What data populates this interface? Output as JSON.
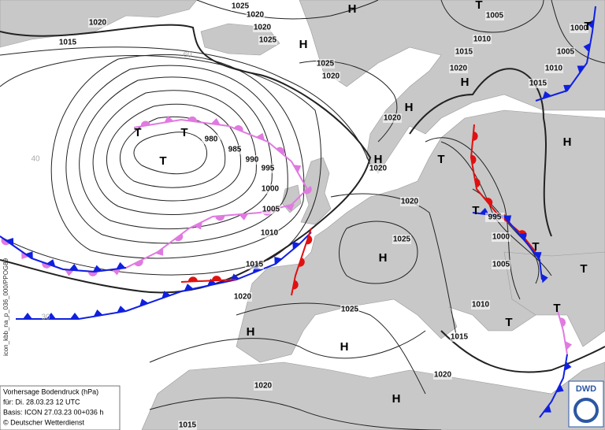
{
  "map": {
    "isobar_labels": [
      "1020",
      "1025",
      "1020",
      "1020",
      "1025",
      "1015",
      "1025",
      "1020",
      "1005",
      "1000",
      "1010",
      "1005",
      "1015",
      "1020",
      "1010",
      "1015",
      "1020",
      "1020",
      "1020",
      "980",
      "985",
      "990",
      "995",
      "1000",
      "1005",
      "1010",
      "1015",
      "1020",
      "1025",
      "995",
      "1000",
      "1005",
      "1010",
      "1025",
      "1015",
      "1020",
      "1020",
      "1015"
    ],
    "pressure_centers": [
      "H",
      "H",
      "H",
      "H",
      "H",
      "H",
      "H",
      "H",
      "H",
      "H",
      "T",
      "T",
      "T",
      "T",
      "T",
      "T",
      "T",
      "T",
      "T",
      "T",
      "T"
    ],
    "latitude_labels": [
      "60",
      "40",
      "30"
    ],
    "info": {
      "title": "Vorhersage Bodendruck (hPa)",
      "valid": "für:  Di. 28.03.23  12 UTC",
      "base": "Basis: ICON  27.03.23 00+036 h",
      "copyright": "© Deutscher Wetterdienst"
    },
    "side_text": "icon_kbb_na_p_036_000/PPOG89",
    "logo": "DWD"
  }
}
